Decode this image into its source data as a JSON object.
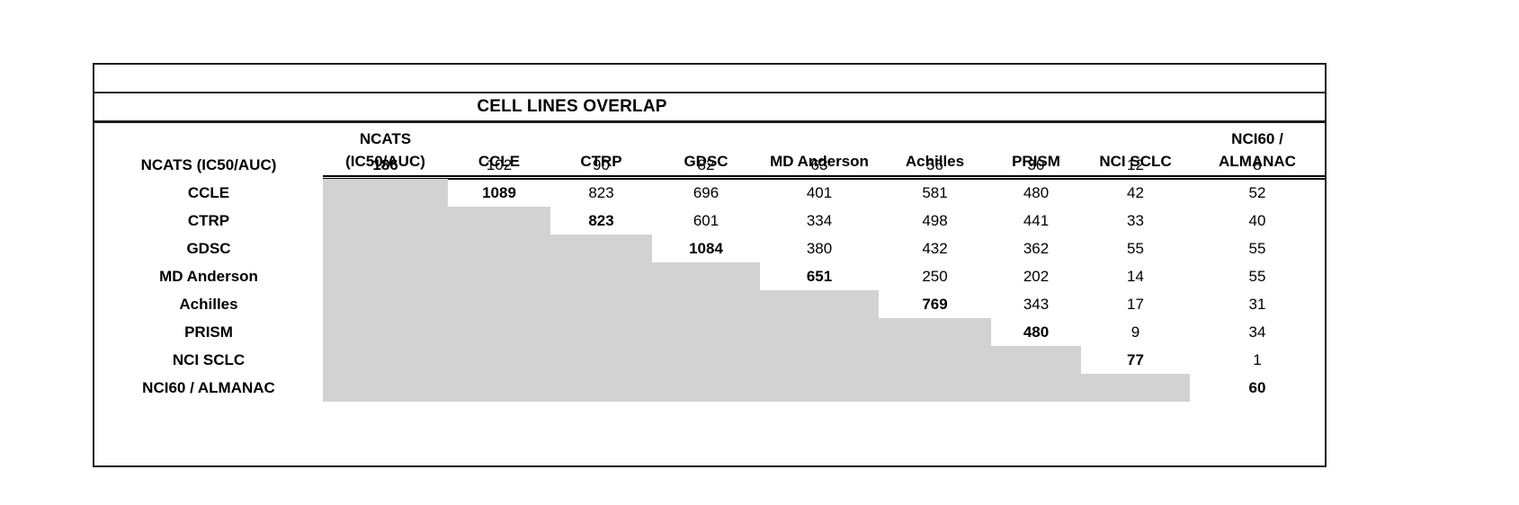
{
  "table": {
    "title": "CELL LINES OVERLAP",
    "column_headers": [
      [
        "NCATS",
        "(IC50/AUC)"
      ],
      [
        "CCLE"
      ],
      [
        "CTRP"
      ],
      [
        "GDSC"
      ],
      [
        "MD Anderson"
      ],
      [
        "Achilles"
      ],
      [
        "PRISM"
      ],
      [
        "NCI SCLC"
      ],
      [
        "NCI60 /",
        "ALMANAC"
      ]
    ],
    "row_headers": [
      "NCATS (IC50/AUC)",
      "CCLE",
      "CTRP",
      "GDSC",
      "MD Anderson",
      "Achilles",
      "PRISM",
      "NCI SCLC",
      "NCI60 / ALMANAC"
    ],
    "colors": {
      "lower_triangle_fill": "#d2d2d2",
      "border": "#1d1d1d",
      "text": "#000000",
      "background": "#ffffff"
    }
  },
  "chart_data": {
    "type": "table",
    "title": "CELL LINES OVERLAP",
    "columns": [
      "NCATS (IC50/AUC)",
      "CCLE",
      "CTRP",
      "GDSC",
      "MD Anderson",
      "Achilles",
      "PRISM",
      "NCI SCLC",
      "NCI60 / ALMANAC"
    ],
    "rows": [
      "NCATS (IC50/AUC)",
      "CCLE",
      "CTRP",
      "GDSC",
      "MD Anderson",
      "Achilles",
      "PRISM",
      "NCI SCLC",
      "NCI60 / ALMANAC"
    ],
    "matrix": [
      [
        186,
        102,
        90,
        82,
        63,
        56,
        30,
        12,
        8
      ],
      [
        null,
        1089,
        823,
        696,
        401,
        581,
        480,
        42,
        52
      ],
      [
        null,
        null,
        823,
        601,
        334,
        498,
        441,
        33,
        40
      ],
      [
        null,
        null,
        null,
        1084,
        380,
        432,
        362,
        55,
        55
      ],
      [
        null,
        null,
        null,
        null,
        651,
        250,
        202,
        14,
        55
      ],
      [
        null,
        null,
        null,
        null,
        null,
        769,
        343,
        17,
        31
      ],
      [
        null,
        null,
        null,
        null,
        null,
        null,
        480,
        9,
        34
      ],
      [
        null,
        null,
        null,
        null,
        null,
        null,
        null,
        77,
        1
      ],
      [
        null,
        null,
        null,
        null,
        null,
        null,
        null,
        null,
        60
      ]
    ],
    "diagonal_values": [
      186,
      1089,
      823,
      1084,
      651,
      769,
      480,
      77,
      60
    ],
    "diagonal_bold": true,
    "lower_triangle": "gray filled, no values",
    "legend_position": "none",
    "grid": false
  }
}
